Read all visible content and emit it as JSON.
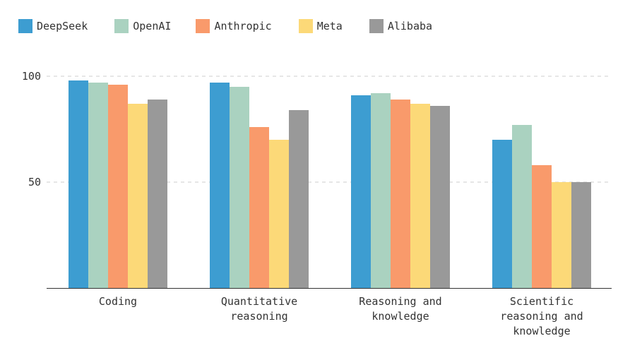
{
  "chart_data": {
    "type": "bar",
    "categories": [
      [
        "Coding"
      ],
      [
        "Quantitative",
        "reasoning"
      ],
      [
        "Reasoning and",
        "knowledge"
      ],
      [
        "Scientific",
        "reasoning and",
        "knowledge"
      ]
    ],
    "series": [
      {
        "name": "DeepSeek",
        "color": "#3d9dd1",
        "values": [
          98,
          97,
          91,
          70
        ]
      },
      {
        "name": "OpenAI",
        "color": "#aad2c0",
        "values": [
          97,
          95,
          92,
          77
        ]
      },
      {
        "name": "Anthropic",
        "color": "#f99a6b",
        "values": [
          96,
          76,
          89,
          58
        ]
      },
      {
        "name": "Meta",
        "color": "#fcd978",
        "values": [
          87,
          70,
          87,
          50
        ]
      },
      {
        "name": "Alibaba",
        "color": "#999999",
        "values": [
          89,
          84,
          86,
          50
        ]
      }
    ],
    "yticks": [
      100,
      50
    ],
    "ylim": [
      0,
      100
    ],
    "grid": true,
    "legend_position": "top-left"
  }
}
